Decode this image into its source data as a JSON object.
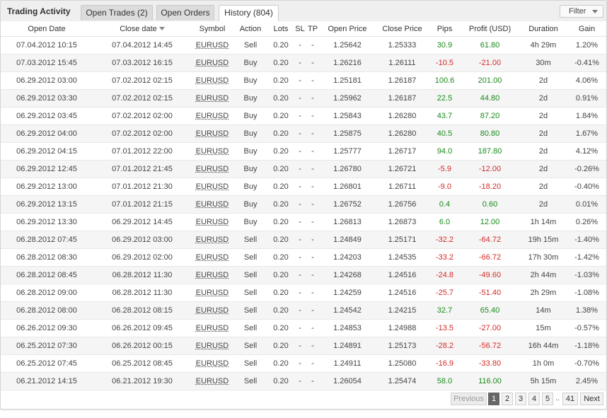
{
  "header": {
    "title": "Trading Activity",
    "tabs": [
      {
        "label": "Open Trades (2)"
      },
      {
        "label": "Open Orders"
      },
      {
        "label": "History (804)"
      }
    ],
    "filter_label": "Filter"
  },
  "colors": {
    "positive": "#1a8a1a",
    "negative": "#d42a2a",
    "accent": "#666666"
  },
  "columns": [
    "Open Date",
    "Close date",
    "Symbol",
    "Action",
    "Lots",
    "SL",
    "TP",
    "Open Price",
    "Close Price",
    "Pips",
    "Profit (USD)",
    "Duration",
    "Gain"
  ],
  "rows": [
    [
      "07.04.2012 10:15",
      "07.04.2012 14:45",
      "EURUSD",
      "Sell",
      "0.20",
      "-",
      "-",
      "1.25642",
      "1.25333",
      "30.9",
      "61.80",
      "4h 29m",
      "1.20%"
    ],
    [
      "07.03.2012 15:45",
      "07.03.2012 16:15",
      "EURUSD",
      "Buy",
      "0.20",
      "-",
      "-",
      "1.26216",
      "1.26111",
      "-10.5",
      "-21.00",
      "30m",
      "-0.41%"
    ],
    [
      "06.29.2012 03:00",
      "07.02.2012 02:15",
      "EURUSD",
      "Buy",
      "0.20",
      "-",
      "-",
      "1.25181",
      "1.26187",
      "100.6",
      "201.00",
      "2d",
      "4.06%"
    ],
    [
      "06.29.2012 03:30",
      "07.02.2012 02:15",
      "EURUSD",
      "Buy",
      "0.20",
      "-",
      "-",
      "1.25962",
      "1.26187",
      "22.5",
      "44.80",
      "2d",
      "0.91%"
    ],
    [
      "06.29.2012 03:45",
      "07.02.2012 02:00",
      "EURUSD",
      "Buy",
      "0.20",
      "-",
      "-",
      "1.25843",
      "1.26280",
      "43.7",
      "87.20",
      "2d",
      "1.84%"
    ],
    [
      "06.29.2012 04:00",
      "07.02.2012 02:00",
      "EURUSD",
      "Buy",
      "0.20",
      "-",
      "-",
      "1.25875",
      "1.26280",
      "40.5",
      "80.80",
      "2d",
      "1.67%"
    ],
    [
      "06.29.2012 04:15",
      "07.01.2012 22:00",
      "EURUSD",
      "Buy",
      "0.20",
      "-",
      "-",
      "1.25777",
      "1.26717",
      "94.0",
      "187.80",
      "2d",
      "4.12%"
    ],
    [
      "06.29.2012 12:45",
      "07.01.2012 21:45",
      "EURUSD",
      "Buy",
      "0.20",
      "-",
      "-",
      "1.26780",
      "1.26721",
      "-5.9",
      "-12.00",
      "2d",
      "-0.26%"
    ],
    [
      "06.29.2012 13:00",
      "07.01.2012 21:30",
      "EURUSD",
      "Buy",
      "0.20",
      "-",
      "-",
      "1.26801",
      "1.26711",
      "-9.0",
      "-18.20",
      "2d",
      "-0.40%"
    ],
    [
      "06.29.2012 13:15",
      "07.01.2012 21:15",
      "EURUSD",
      "Buy",
      "0.20",
      "-",
      "-",
      "1.26752",
      "1.26756",
      "0.4",
      "0.60",
      "2d",
      "0.01%"
    ],
    [
      "06.29.2012 13:30",
      "06.29.2012 14:45",
      "EURUSD",
      "Buy",
      "0.20",
      "-",
      "-",
      "1.26813",
      "1.26873",
      "6.0",
      "12.00",
      "1h 14m",
      "0.26%"
    ],
    [
      "06.28.2012 07:45",
      "06.29.2012 03:00",
      "EURUSD",
      "Sell",
      "0.20",
      "-",
      "-",
      "1.24849",
      "1.25171",
      "-32.2",
      "-64.72",
      "19h 15m",
      "-1.40%"
    ],
    [
      "06.28.2012 08:30",
      "06.29.2012 02:00",
      "EURUSD",
      "Sell",
      "0.20",
      "-",
      "-",
      "1.24203",
      "1.24535",
      "-33.2",
      "-66.72",
      "17h 30m",
      "-1.42%"
    ],
    [
      "06.28.2012 08:45",
      "06.28.2012 11:30",
      "EURUSD",
      "Sell",
      "0.20",
      "-",
      "-",
      "1.24268",
      "1.24516",
      "-24.8",
      "-49.60",
      "2h 44m",
      "-1.03%"
    ],
    [
      "06.28.2012 09:00",
      "06.28.2012 11:30",
      "EURUSD",
      "Sell",
      "0.20",
      "-",
      "-",
      "1.24259",
      "1.24516",
      "-25.7",
      "-51.40",
      "2h 29m",
      "-1.08%"
    ],
    [
      "06.28.2012 08:00",
      "06.28.2012 08:15",
      "EURUSD",
      "Sell",
      "0.20",
      "-",
      "-",
      "1.24542",
      "1.24215",
      "32.7",
      "65.40",
      "14m",
      "1.38%"
    ],
    [
      "06.26.2012 09:30",
      "06.26.2012 09:45",
      "EURUSD",
      "Sell",
      "0.20",
      "-",
      "-",
      "1.24853",
      "1.24988",
      "-13.5",
      "-27.00",
      "15m",
      "-0.57%"
    ],
    [
      "06.25.2012 07:30",
      "06.26.2012 00:15",
      "EURUSD",
      "Sell",
      "0.20",
      "-",
      "-",
      "1.24891",
      "1.25173",
      "-28.2",
      "-56.72",
      "16h 44m",
      "-1.18%"
    ],
    [
      "06.25.2012 07:45",
      "06.25.2012 08:45",
      "EURUSD",
      "Sell",
      "0.20",
      "-",
      "-",
      "1.24911",
      "1.25080",
      "-16.9",
      "-33.80",
      "1h 0m",
      "-0.70%"
    ],
    [
      "06.21.2012 14:15",
      "06.21.2012 19:30",
      "EURUSD",
      "Sell",
      "0.20",
      "-",
      "-",
      "1.26054",
      "1.25474",
      "58.0",
      "116.00",
      "5h 15m",
      "2.45%"
    ]
  ],
  "pagination": {
    "previous": "Previous",
    "pages": [
      "1",
      "2",
      "3",
      "4",
      "5"
    ],
    "current": "1",
    "ellipsis": "..",
    "last": "41",
    "next": "Next"
  }
}
